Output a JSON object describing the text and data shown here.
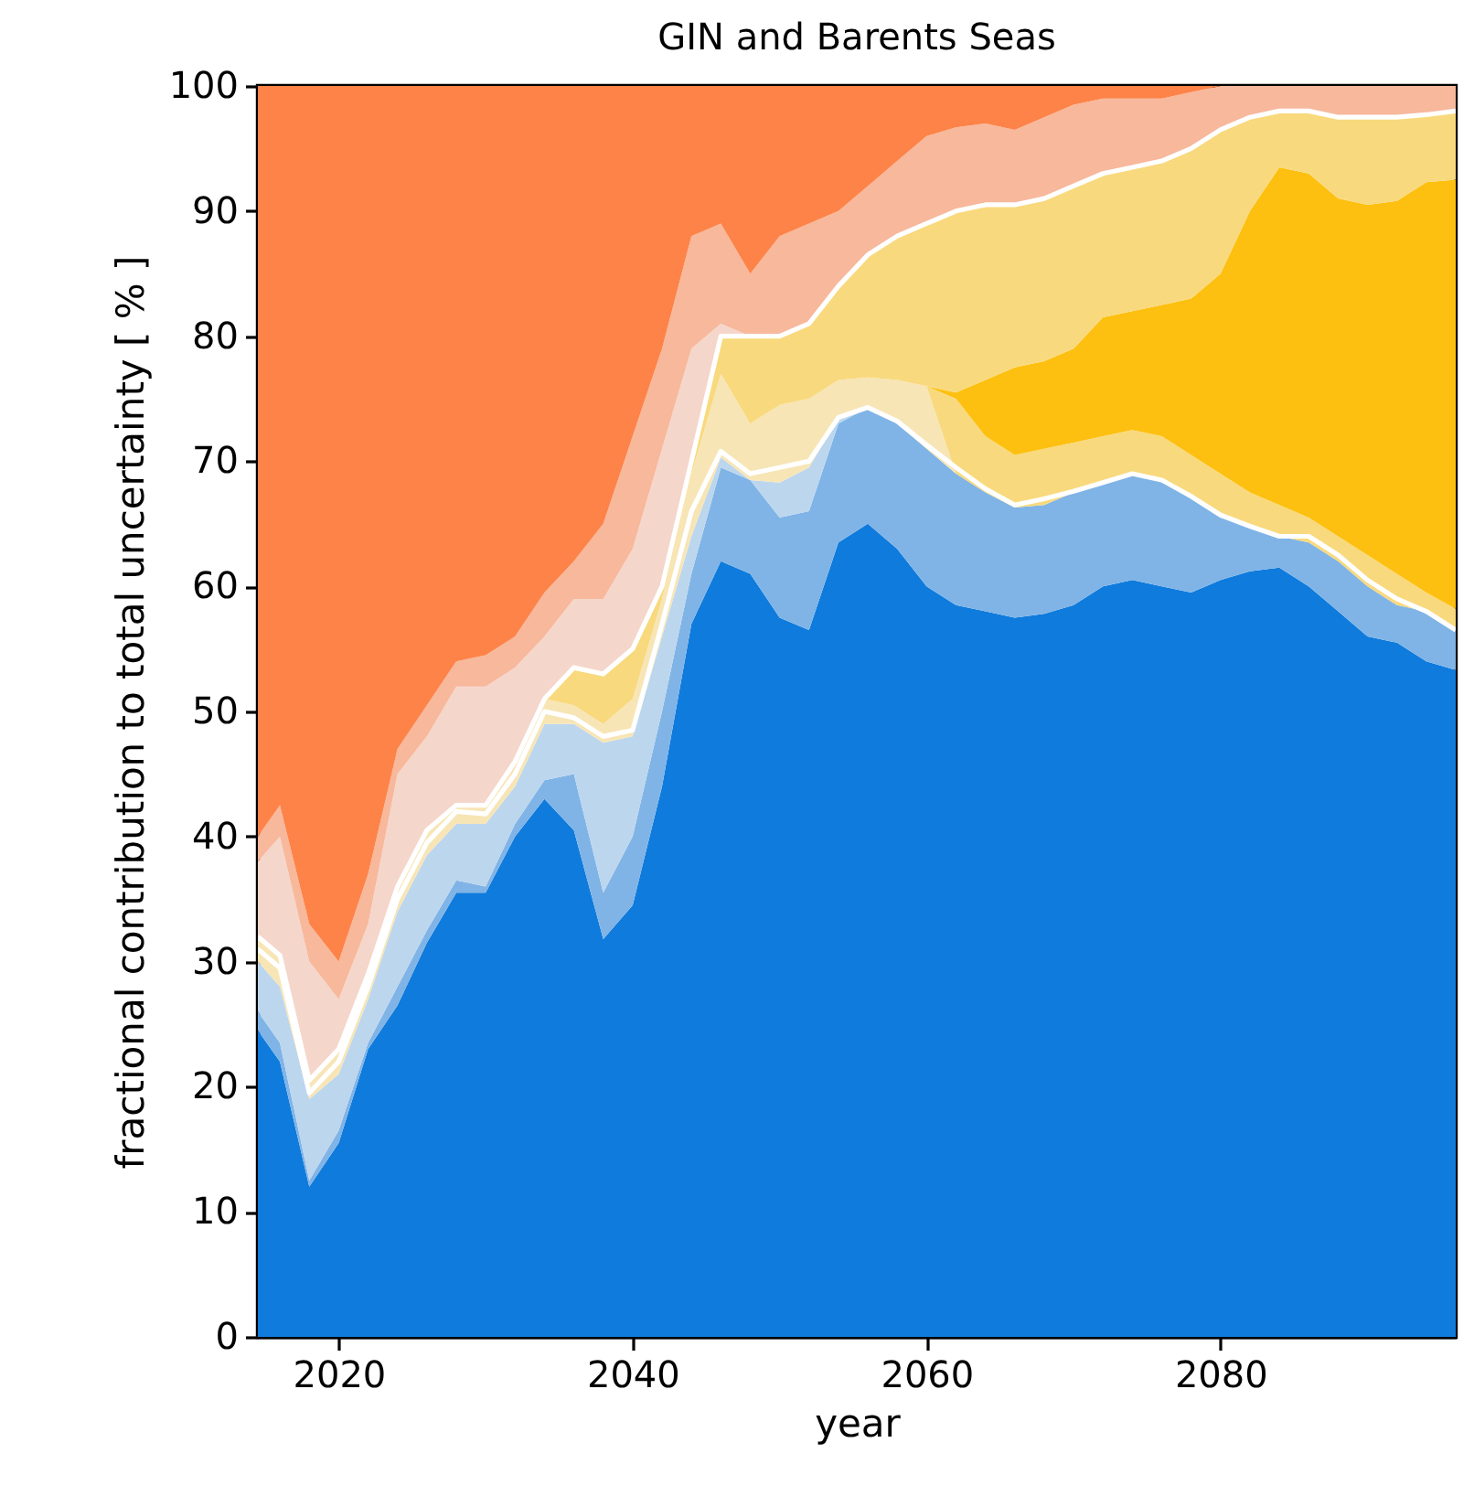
{
  "chart_data": {
    "type": "area",
    "stacked": true,
    "title": "GIN and Barents Seas",
    "xlabel": "year",
    "ylabel": "fractional contribution to total uncertainty [ % ]",
    "x": [
      2014.5,
      2016,
      2018,
      2020,
      2022,
      2024,
      2026,
      2028,
      2030,
      2032,
      2034,
      2036,
      2038,
      2040,
      2042,
      2044,
      2046,
      2048,
      2050,
      2052,
      2054,
      2056,
      2058,
      2060,
      2062,
      2064,
      2066,
      2068,
      2070,
      2072,
      2074,
      2076,
      2078,
      2080,
      2082,
      2084,
      2086,
      2088,
      2090,
      2092,
      2094,
      2096
    ],
    "xlim": [
      2014.5,
      2096
    ],
    "xticks": [
      2020,
      2040,
      2060,
      2080
    ],
    "ylim": [
      0,
      100
    ],
    "yticks": [
      0,
      10,
      20,
      30,
      40,
      50,
      60,
      70,
      80,
      90,
      100
    ],
    "grid": false,
    "series": [
      {
        "color": "#0f7bdc",
        "values": [
          24.5,
          22,
          12,
          15.5,
          23,
          26.5,
          31.5,
          35.5,
          35.5,
          40,
          43,
          40.5,
          31.8,
          34.5,
          44,
          57,
          62,
          61,
          57.5,
          56.5,
          63.5,
          65,
          63,
          60,
          58.5,
          58,
          57.5,
          57.8,
          58.5,
          60,
          60.5,
          60,
          59.5,
          60.5,
          61.2,
          61.5,
          60,
          58,
          56,
          55.5,
          54,
          53.3
        ]
      },
      {
        "color": "#80b4e6",
        "values": [
          1.5,
          1.5,
          0.5,
          1,
          0.5,
          1.5,
          1,
          1,
          0.5,
          1,
          1.5,
          4.5,
          3.7,
          5.5,
          6,
          4,
          7.5,
          7.5,
          8,
          9.5,
          9.5,
          9.3,
          10,
          11,
          10.5,
          9.5,
          8.8,
          8.7,
          9,
          8.5,
          8.5,
          8.5,
          7.5,
          5,
          3.8,
          2.5,
          3.5,
          4,
          4,
          3,
          4,
          3.2
        ]
      },
      {
        "color": "#bcd6ee",
        "values": [
          4,
          4.5,
          6.5,
          4.5,
          3.5,
          6,
          6,
          4.5,
          5,
          3,
          4.5,
          4,
          12,
          8,
          6,
          3,
          0.8,
          0,
          2.8,
          3.5,
          0.5,
          0,
          null,
          null,
          null,
          null,
          null,
          null,
          null,
          null,
          null,
          null,
          null,
          null,
          null,
          null,
          null,
          null,
          null,
          null,
          null,
          null
        ]
      },
      {
        "color": "#f7e5b6",
        "values": [
          2,
          2.5,
          1.5,
          2,
          2,
          2,
          2,
          1.5,
          1.5,
          2,
          2,
          1.5,
          1.5,
          3,
          3,
          5,
          6.7,
          4.5,
          6.2,
          5.5,
          3,
          2.4,
          3.5,
          5,
          0,
          null,
          null,
          null,
          null,
          null,
          null,
          null,
          null,
          null,
          null,
          null,
          null,
          null,
          null,
          null,
          null,
          null
        ]
      },
      {
        "color": "#f8d97d",
        "values": [
          null,
          null,
          null,
          null,
          null,
          null,
          null,
          null,
          null,
          null,
          null,
          null,
          null,
          null,
          null,
          null,
          null,
          null,
          null,
          null,
          null,
          null,
          null,
          0,
          6,
          4.5,
          4.2,
          4.5,
          4,
          3.5,
          3.5,
          3.5,
          3.5,
          3.5,
          2.5,
          2.5,
          2,
          2,
          2.5,
          2.5,
          1.5,
          1.7
        ]
      },
      {
        "color": "#fdc010",
        "values": [
          null,
          null,
          null,
          null,
          null,
          null,
          null,
          null,
          null,
          null,
          null,
          null,
          null,
          null,
          null,
          null,
          null,
          null,
          null,
          null,
          null,
          null,
          null,
          0,
          0.5,
          4.5,
          7,
          7,
          7.5,
          9.5,
          9.5,
          10.5,
          12.5,
          16,
          22.5,
          27,
          27.5,
          27,
          28,
          29.8,
          32.8,
          34.3
        ]
      },
      {
        "color": "#f8d97d",
        "values": [
          null,
          null,
          null,
          null,
          null,
          null,
          null,
          null,
          null,
          null,
          0,
          3,
          4,
          4,
          1,
          1,
          3,
          7,
          5.5,
          6,
          7.5,
          9.8,
          11.5,
          13,
          14.5,
          14,
          13,
          13,
          13,
          11.5,
          11.5,
          11.5,
          12,
          11.5,
          7.5,
          4.5,
          5,
          6.5,
          7,
          6.7,
          5.4,
          5.5
        ]
      },
      {
        "color": "#f5d6cb",
        "values": [
          6,
          9.5,
          9.5,
          4,
          4,
          9,
          7.5,
          9.5,
          9.5,
          7.5,
          5,
          5.5,
          6,
          8,
          11,
          9,
          1,
          0,
          null,
          null,
          null,
          null,
          null,
          null,
          null,
          null,
          null,
          null,
          null,
          null,
          null,
          null,
          null,
          null,
          null,
          null,
          null,
          null,
          null,
          null,
          null,
          null
        ]
      },
      {
        "color": "#f7b89c",
        "values": [
          2,
          2.5,
          3,
          3,
          4,
          2,
          2.5,
          2,
          2.5,
          2.5,
          3.5,
          3,
          6,
          9,
          8,
          9,
          8,
          5,
          8,
          8,
          6,
          5.5,
          6,
          7,
          6.7,
          6.5,
          6,
          6.5,
          6.5,
          6,
          5.5,
          5,
          4.5,
          3.5,
          2.5,
          2,
          2,
          2.5,
          2.5,
          2.5,
          2.3,
          2
        ]
      },
      {
        "color": "#fd8348",
        "values": [
          60,
          57.5,
          67,
          70,
          63,
          53,
          49.5,
          46,
          45.5,
          44,
          40.5,
          38,
          35,
          28,
          21,
          12,
          11,
          15,
          12,
          11,
          10,
          8,
          6,
          4,
          3.3,
          3,
          3.5,
          2.5,
          1.5,
          1,
          1,
          1,
          0.5,
          0,
          null,
          null,
          null,
          null,
          null,
          null,
          null,
          null
        ]
      },
      {
        "type": "line",
        "color": "#ffffff",
        "values": [
          31,
          29.5,
          19.5,
          22,
          28,
          35,
          39.5,
          42,
          41.8,
          45,
          50,
          49.5,
          48,
          48.5,
          57,
          66,
          70.8,
          69,
          69.5,
          70,
          73.5,
          74.3,
          73.2,
          71.3,
          69.5,
          67.8,
          66.5,
          67,
          67.6,
          68.3,
          69,
          68.5,
          67.2,
          65.7,
          64.8,
          64,
          64,
          62.5,
          60.5,
          59,
          58,
          56.5
        ]
      },
      {
        "type": "line",
        "color": "#ffffff",
        "values": [
          32,
          30.5,
          20.5,
          23,
          29,
          36,
          40.5,
          42.5,
          42.5,
          46,
          51,
          53.5,
          53,
          55,
          60,
          70,
          80,
          80,
          80,
          81,
          84,
          86.5,
          88,
          89,
          90,
          90.5,
          90.5,
          91,
          92,
          93,
          93.5,
          94,
          95,
          96.5,
          97.5,
          98,
          98,
          97.5,
          97.5,
          97.5,
          97.7,
          98
        ]
      }
    ]
  }
}
